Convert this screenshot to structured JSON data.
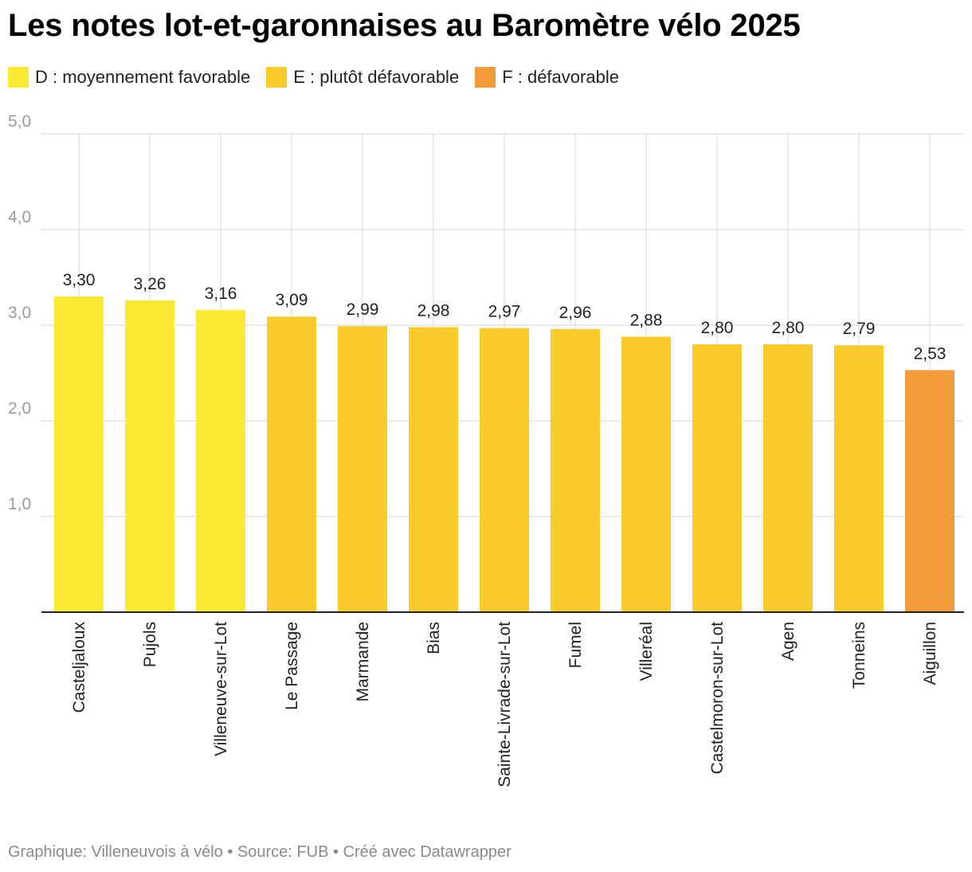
{
  "title": "Les notes lot-et-garonnaises au Baromètre vélo 2025",
  "legend": [
    {
      "label": "D : moyennement favorable",
      "color": "#fbe933"
    },
    {
      "label": "E : plutôt défavorable",
      "color": "#facb2d"
    },
    {
      "label": "F : défavorable",
      "color": "#f39b3a"
    }
  ],
  "footer": "Graphique: Villeneuvois à vélo • Source: FUB • Créé avec Datawrapper",
  "chart_data": {
    "type": "bar",
    "title": "Les notes lot-et-garonnaises au Baromètre vélo 2025",
    "categories": [
      "Casteljaloux",
      "Pujols",
      "Villeneuve-sur-Lot",
      "Le Passage",
      "Marmande",
      "Bias",
      "Sainte-Livrade-sur-Lot",
      "Fumel",
      "Villeréal",
      "Castelmoron-sur-Lot",
      "Agen",
      "Tonneins",
      "Aiguillon"
    ],
    "values": [
      3.3,
      3.26,
      3.16,
      3.09,
      2.99,
      2.98,
      2.97,
      2.96,
      2.88,
      2.8,
      2.8,
      2.79,
      2.53
    ],
    "value_labels": [
      "3,30",
      "3,26",
      "3,16",
      "3,09",
      "2,99",
      "2,98",
      "2,97",
      "2,96",
      "2,88",
      "2,80",
      "2,80",
      "2,79",
      "2,53"
    ],
    "grades": [
      "D",
      "D",
      "D",
      "E",
      "E",
      "E",
      "E",
      "E",
      "E",
      "E",
      "E",
      "E",
      "F"
    ],
    "grade_colors": {
      "D": "#fbe933",
      "E": "#facb2d",
      "F": "#f39b3a"
    },
    "yticks": [
      1.0,
      2.0,
      3.0,
      4.0,
      5.0
    ],
    "ytick_labels": [
      "1,0",
      "2,0",
      "3,0",
      "4,0",
      "5,0"
    ],
    "ylim": [
      0,
      5
    ],
    "grid": true,
    "legend_position": "top-left",
    "xlabel": "",
    "ylabel": ""
  }
}
